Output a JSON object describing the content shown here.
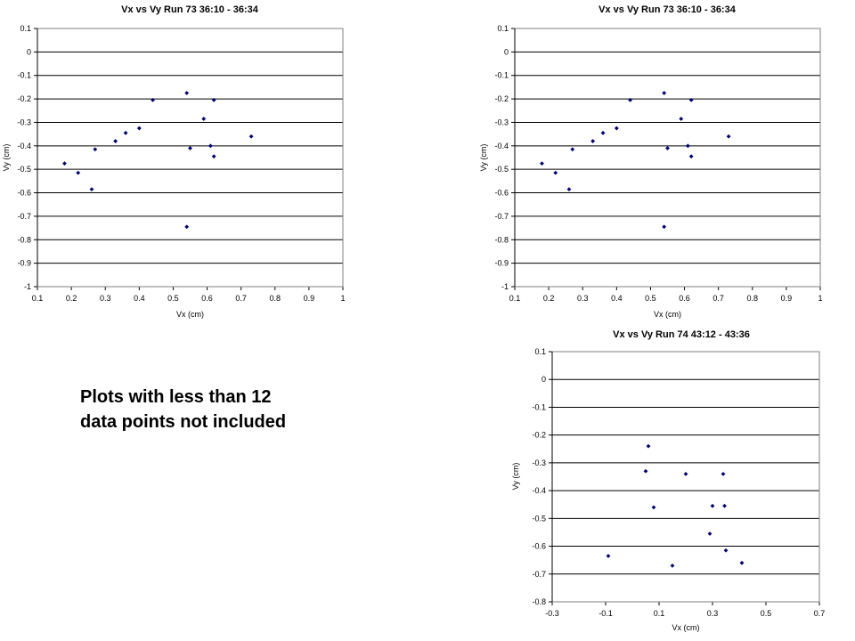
{
  "note": {
    "line1": "Plots with less than 12",
    "line2": "data points not included"
  },
  "chart_data": [
    {
      "type": "scatter",
      "title": "Vx vs Vy Run 73 36:10 - 36:34",
      "xlabel": "Vx (cm)",
      "ylabel": "Vy (cm)",
      "xlim": [
        0.1,
        1
      ],
      "ylim": [
        -1,
        0.1
      ],
      "xticks": [
        "0.1",
        "0.2",
        "0.3",
        "0.4",
        "0.5",
        "0.6",
        "0.7",
        "0.8",
        "0.9",
        "1"
      ],
      "yticks": [
        "0.1",
        "0",
        "-0.1",
        "-0.2",
        "-0.3",
        "-0.4",
        "-0.5",
        "-0.6",
        "-0.7",
        "-0.8",
        "-0.9",
        "-1"
      ],
      "grid": "horizontal",
      "marker_color": "#000080",
      "x": [
        0.18,
        0.22,
        0.26,
        0.27,
        0.33,
        0.36,
        0.4,
        0.44,
        0.54,
        0.55,
        0.54,
        0.59,
        0.61,
        0.62,
        0.62,
        0.73
      ],
      "y": [
        -0.475,
        -0.515,
        -0.585,
        -0.415,
        -0.38,
        -0.345,
        -0.325,
        -0.205,
        -0.175,
        -0.41,
        -0.745,
        -0.285,
        -0.4,
        -0.205,
        -0.445,
        -0.36
      ]
    },
    {
      "type": "scatter",
      "title": "Vx vs Vy Run 73 36:10 - 36:34",
      "xlabel": "Vx (cm)",
      "ylabel": "Vy (cm)",
      "xlim": [
        0.1,
        1
      ],
      "ylim": [
        -1,
        0.1
      ],
      "xticks": [
        "0.1",
        "0.2",
        "0.3",
        "0.4",
        "0.5",
        "0.6",
        "0.7",
        "0.8",
        "0.9",
        "1"
      ],
      "yticks": [
        "0.1",
        "0",
        "-0.1",
        "-0.2",
        "-0.3",
        "-0.4",
        "-0.5",
        "-0.6",
        "-0.7",
        "-0.8",
        "-0.9",
        "-1"
      ],
      "grid": "horizontal",
      "marker_color": "#000080",
      "x": [
        0.18,
        0.22,
        0.26,
        0.27,
        0.33,
        0.36,
        0.4,
        0.44,
        0.54,
        0.55,
        0.54,
        0.59,
        0.61,
        0.62,
        0.62,
        0.73
      ],
      "y": [
        -0.475,
        -0.515,
        -0.585,
        -0.415,
        -0.38,
        -0.345,
        -0.325,
        -0.205,
        -0.175,
        -0.41,
        -0.745,
        -0.285,
        -0.4,
        -0.205,
        -0.445,
        -0.36
      ]
    },
    {
      "type": "scatter",
      "title": "Vx vs Vy Run 74 43:12 - 43:36",
      "xlabel": "Vx (cm)",
      "ylabel": "Vy (cm)",
      "xlim": [
        -0.3,
        0.7
      ],
      "ylim": [
        -0.8,
        0.1
      ],
      "xticks": [
        "-0.3",
        "-0.1",
        "0.1",
        "0.3",
        "0.5",
        "0.7"
      ],
      "yticks": [
        "0.1",
        "0",
        "-0.1",
        "-0.2",
        "-0.3",
        "-0.4",
        "-0.5",
        "-0.6",
        "-0.7",
        "-0.8"
      ],
      "grid": "horizontal",
      "marker_color": "#000080",
      "x": [
        -0.09,
        0.05,
        0.06,
        0.08,
        0.15,
        0.2,
        0.29,
        0.3,
        0.34,
        0.345,
        0.35,
        0.41
      ],
      "y": [
        -0.635,
        -0.33,
        -0.24,
        -0.46,
        -0.67,
        -0.34,
        -0.555,
        -0.455,
        -0.34,
        -0.455,
        -0.615,
        -0.66
      ]
    }
  ]
}
